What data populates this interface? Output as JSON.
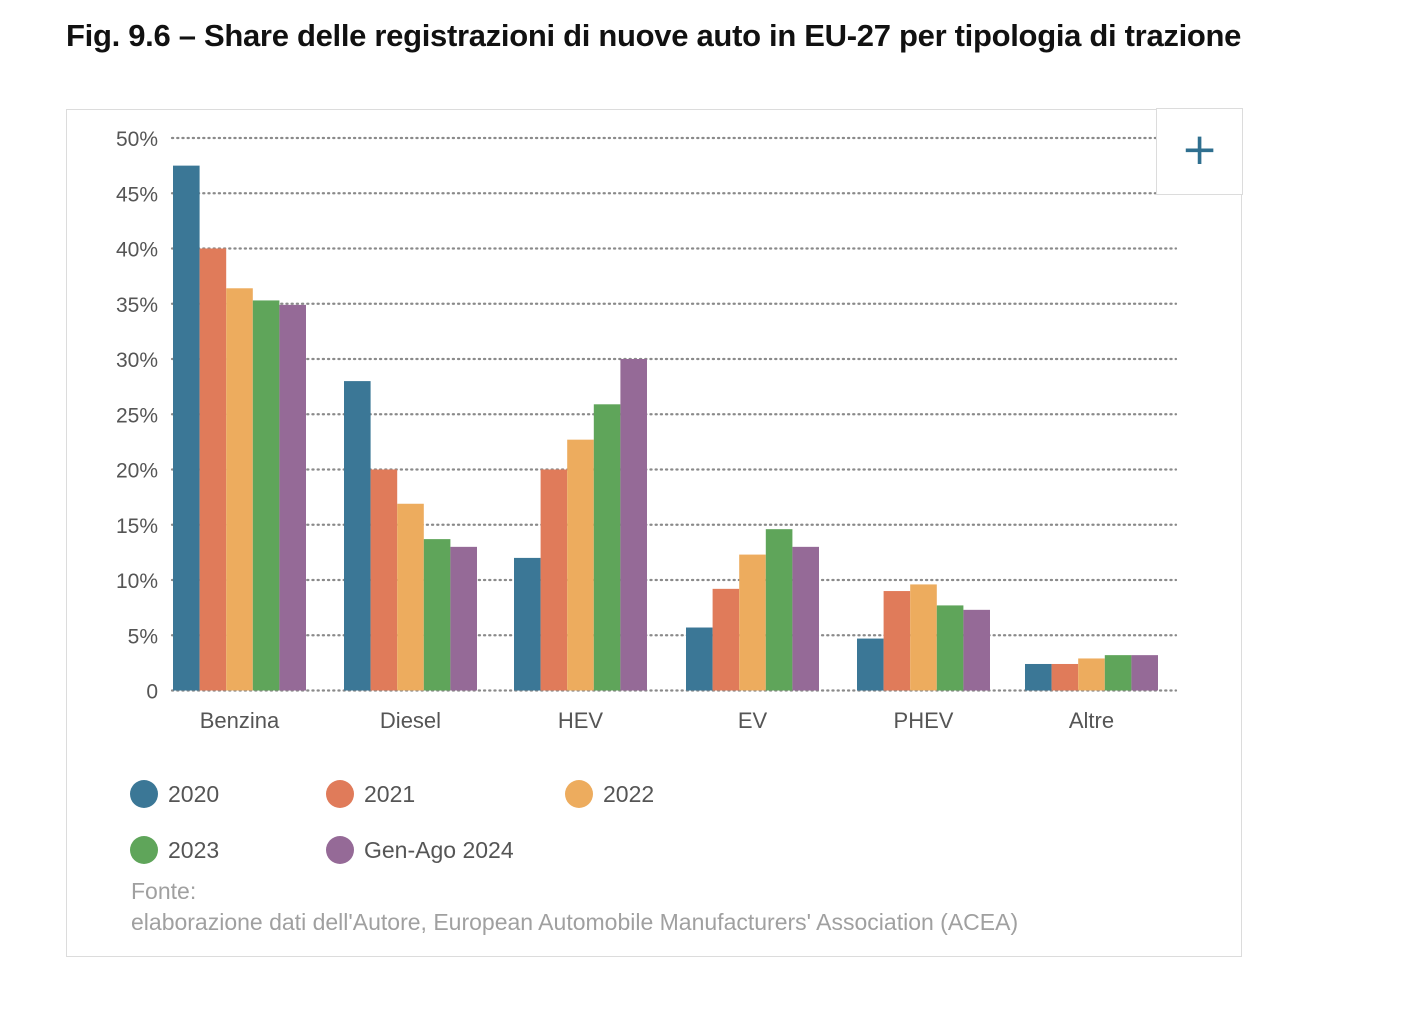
{
  "title": "Fig. 9.6 – Share delle registrazioni di nuove auto in EU-27 per tipologia di trazione",
  "expand_icon": "plus-icon",
  "expand_glyph": "+",
  "chart_data": {
    "type": "bar",
    "categories": [
      "Benzina",
      "Diesel",
      "HEV",
      "EV",
      "PHEV",
      "Altre"
    ],
    "series": [
      {
        "name": "2020",
        "color": "#3b7796",
        "values": [
          47.5,
          28.0,
          12.0,
          5.7,
          4.7,
          2.4
        ]
      },
      {
        "name": "2021",
        "color": "#e07b5a",
        "values": [
          40.0,
          20.0,
          20.0,
          9.2,
          9.0,
          2.4
        ]
      },
      {
        "name": "2022",
        "color": "#edac5e",
        "values": [
          36.4,
          16.9,
          22.7,
          12.3,
          9.6,
          2.9
        ]
      },
      {
        "name": "2023",
        "color": "#5fa55a",
        "values": [
          35.3,
          13.7,
          25.9,
          14.6,
          7.7,
          3.2
        ]
      },
      {
        "name": "Gen-Ago 2024",
        "color": "#956a97",
        "values": [
          34.9,
          13.0,
          30.0,
          13.0,
          7.3,
          3.2
        ]
      }
    ],
    "yticks": [
      "0",
      "5%",
      "10%",
      "15%",
      "20%",
      "25%",
      "30%",
      "35%",
      "40%",
      "45%",
      "50%"
    ],
    "ylim": [
      0,
      50
    ],
    "grid": true,
    "legend_position": "bottom-left"
  },
  "source": {
    "label": "Fonte:",
    "text": "elaborazione dati dell'Autore, European Automobile Manufacturers' Association (ACEA)"
  }
}
